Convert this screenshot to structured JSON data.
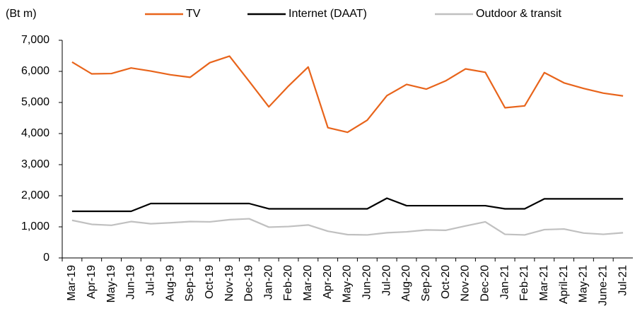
{
  "chart_data": {
    "type": "line",
    "y_label": "(Bt m)",
    "categories": [
      "Mar-19",
      "Apr-19",
      "May-19",
      "Jun-19",
      "Jul-19",
      "Aug-19",
      "Sep-19",
      "Oct-19",
      "Nov-19",
      "Dec-19",
      "Jan-20",
      "Feb-20",
      "Mar-20",
      "Apr-20",
      "May-20",
      "Jun-20",
      "Jul-20",
      "Aug-20",
      "Sep-20",
      "Oct-20",
      "Nov-20",
      "Dec-20",
      "Jan-21",
      "Feb-21",
      "Mar-21",
      "April-21",
      "May-21",
      "June-21",
      "Jul-21"
    ],
    "series": [
      {
        "name": "TV",
        "color": "#e8641b",
        "values": [
          6300,
          5920,
          5930,
          6110,
          6010,
          5890,
          5810,
          6280,
          6490,
          5680,
          4860,
          5530,
          6140,
          4190,
          4040,
          4430,
          5220,
          5580,
          5430,
          5700,
          6080,
          5970,
          4830,
          4890,
          5960,
          5630,
          5450,
          5300,
          5210
        ]
      },
      {
        "name": "Internet (DAAT)",
        "color": "#000000",
        "values": [
          1500,
          1500,
          1500,
          1500,
          1750,
          1750,
          1750,
          1750,
          1750,
          1750,
          1580,
          1580,
          1580,
          1580,
          1580,
          1580,
          1920,
          1680,
          1680,
          1680,
          1680,
          1680,
          1580,
          1580,
          1900,
          1900,
          1900,
          1900,
          1900
        ]
      },
      {
        "name": "Outdoor & transit",
        "color": "#c0c0c0",
        "values": [
          1210,
          1080,
          1050,
          1170,
          1100,
          1130,
          1170,
          1160,
          1230,
          1260,
          990,
          1010,
          1060,
          860,
          750,
          740,
          810,
          840,
          900,
          890,
          1030,
          1160,
          760,
          740,
          910,
          930,
          800,
          760,
          810
        ]
      }
    ],
    "ylim": [
      0,
      7000
    ],
    "yticks": [
      0,
      {
        "value": 1000,
        "label": "1,000"
      },
      {
        "value": 2000,
        "label": "2,000"
      },
      {
        "value": 3000,
        "label": "3,000"
      },
      {
        "value": 4000,
        "label": "4,000"
      },
      {
        "value": 5000,
        "label": "5,000"
      },
      {
        "value": 6000,
        "label": "6,000"
      },
      {
        "value": 7000,
        "label": "7,000"
      }
    ],
    "grid": false,
    "legend": "top"
  }
}
